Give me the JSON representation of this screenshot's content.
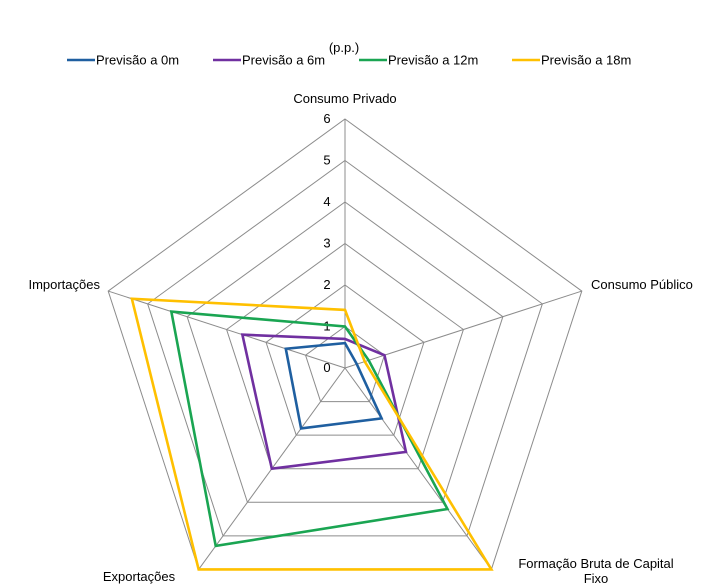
{
  "chart_data": {
    "type": "radar",
    "title": "(p.p.)",
    "axes": [
      "Consumo Privado",
      "Consumo Público",
      "Formação Bruta de Capital Fixo",
      "Exportações",
      "Importações"
    ],
    "axis_label_lines": [
      [
        "Consumo Privado"
      ],
      [
        "Consumo Público"
      ],
      [
        "Formação Bruta de Capital",
        "Fixo"
      ],
      [
        "Exportações"
      ],
      [
        "Importações"
      ]
    ],
    "r_ticks": [
      "0",
      "1",
      "2",
      "3",
      "4",
      "5",
      "6"
    ],
    "r_range": [
      0,
      6
    ],
    "grid": true,
    "legend_position": "top",
    "series": [
      {
        "name": "Previsão a 0m",
        "color": "#1f5fa0",
        "values": [
          0.6,
          0.3,
          1.5,
          1.8,
          1.5
        ]
      },
      {
        "name": "Previsão a 6m",
        "color": "#7030a0",
        "values": [
          0.7,
          1.0,
          2.5,
          3.0,
          2.6
        ]
      },
      {
        "name": "Previsão a 12m",
        "color": "#1aa552",
        "values": [
          1.0,
          0.6,
          4.2,
          5.3,
          4.4
        ]
      },
      {
        "name": "Previsão a 18m",
        "color": "#ffc000",
        "values": [
          1.4,
          0.5,
          6.0,
          6.0,
          5.4
        ]
      }
    ]
  }
}
